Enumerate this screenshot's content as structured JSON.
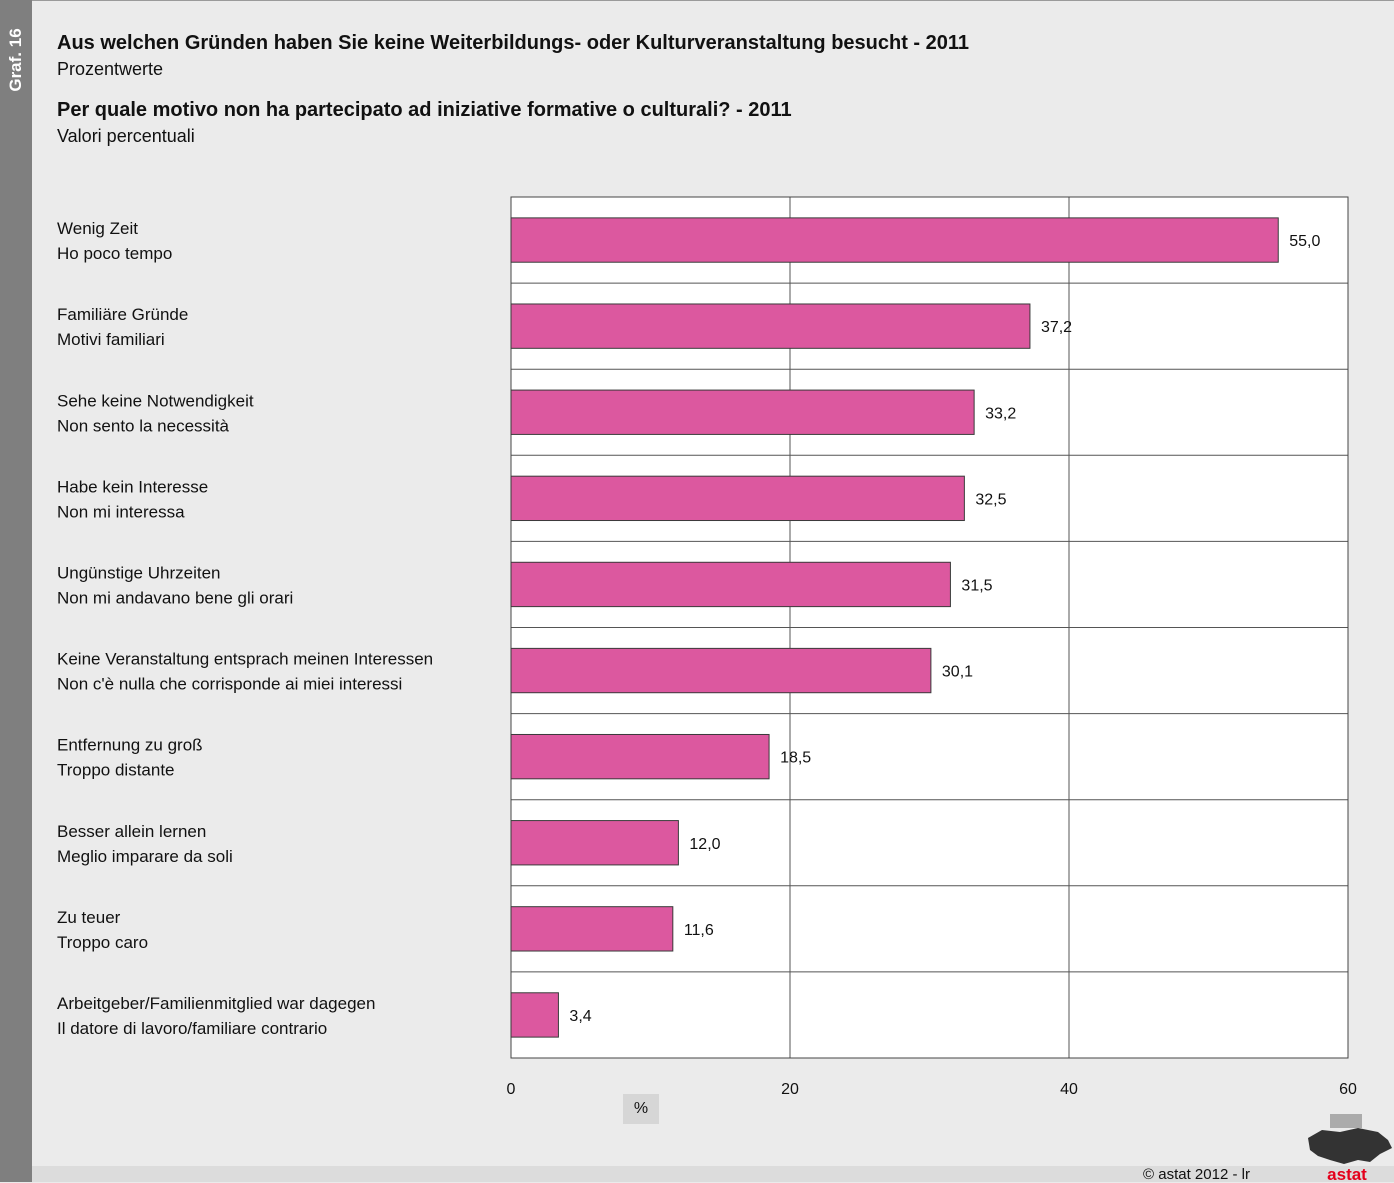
{
  "graf_label": "Graf. 16",
  "title_de": "Aus welchen Gründen haben Sie keine Weiterbildungs- oder Kulturveranstaltung besucht - 2011",
  "subtitle_de": "Prozentwerte",
  "title_it": "Per quale motivo non ha partecipato ad iniziative formative o culturali? - 2011",
  "subtitle_it": "Valori percentuali",
  "unit": "%",
  "copyright": "astat 2012 - lr",
  "copyright_symbol": "©",
  "logo_text": "astat",
  "colors": {
    "bar": "#dc589f",
    "brand": "#e4001b"
  },
  "chart_data": {
    "type": "bar",
    "orientation": "horizontal",
    "categories": [
      [
        "Wenig Zeit",
        "Ho poco tempo"
      ],
      [
        "Familiäre Gründe",
        "Motivi familiari"
      ],
      [
        "Sehe keine Notwendigkeit",
        "Non sento la necessità"
      ],
      [
        "Habe kein Interesse",
        "Non mi interessa"
      ],
      [
        "Ungünstige Uhrzeiten",
        "Non mi andavano bene gli orari"
      ],
      [
        "Keine Veranstaltung entsprach meinen Interessen",
        "Non c'è nulla che corrisponde ai miei interessi"
      ],
      [
        "Entfernung zu groß",
        "Troppo distante"
      ],
      [
        "Besser allein lernen",
        "Meglio imparare da soli"
      ],
      [
        "Zu teuer",
        "Troppo caro"
      ],
      [
        "Arbeitgeber/Familienmitglied war dagegen",
        "Il datore di lavoro/familiare contrario"
      ]
    ],
    "values": [
      55.0,
      37.2,
      33.2,
      32.5,
      31.5,
      30.1,
      18.5,
      12.0,
      11.6,
      3.4
    ],
    "value_labels": [
      "55,0",
      "37,2",
      "33,2",
      "32,5",
      "31,5",
      "30,1",
      "18,5",
      "12,0",
      "11,6",
      "3,4"
    ],
    "xlim": [
      0,
      60
    ],
    "xticks": [
      0,
      20,
      40,
      60
    ],
    "xlabel": "%",
    "grid": true
  }
}
